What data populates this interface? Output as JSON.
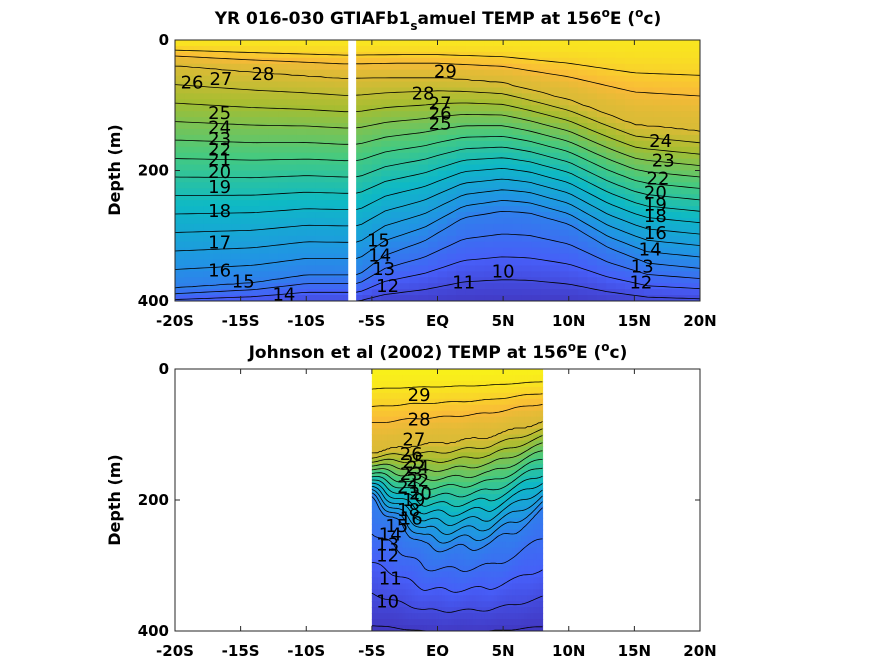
{
  "chart_data": [
    {
      "type": "heatmap",
      "title_parts": [
        "YR 016-030 GTIAFb1",
        "s",
        "amuel TEMP at 156",
        "o",
        "E (",
        "o",
        "c)"
      ],
      "ylabel": "Depth (m)",
      "xlim": [
        -20,
        20
      ],
      "ylim": [
        0,
        400
      ],
      "xtick_labels": [
        "-20S",
        "-15S",
        "-10S",
        "-5S",
        "EQ",
        "5N",
        "10N",
        "15N",
        "20N"
      ],
      "xticks": [
        -20,
        -15,
        -10,
        -5,
        0,
        5,
        10,
        15,
        20
      ],
      "ytick_labels": [
        "0",
        "200",
        "400"
      ],
      "yticks": [
        0,
        200,
        400
      ],
      "data_lat_range": [
        -20,
        20
      ],
      "missing_lat_band": [
        -6.8,
        -6.2
      ],
      "contour_levels": [
        10,
        11,
        12,
        13,
        14,
        15,
        16,
        17,
        18,
        19,
        20,
        21,
        22,
        23,
        24,
        25,
        26,
        27,
        28,
        29
      ],
      "color_range": [
        9,
        30
      ],
      "contour_labels": [
        {
          "t": "26",
          "lat": -18.7,
          "depth": 65
        },
        {
          "t": "27",
          "lat": -16.5,
          "depth": 60
        },
        {
          "t": "28",
          "lat": -13.3,
          "depth": 52
        },
        {
          "t": "25",
          "lat": -16.6,
          "depth": 112
        },
        {
          "t": "24",
          "lat": -16.6,
          "depth": 134
        },
        {
          "t": "23",
          "lat": -16.6,
          "depth": 152
        },
        {
          "t": "22",
          "lat": -16.6,
          "depth": 168
        },
        {
          "t": "21",
          "lat": -16.6,
          "depth": 183
        },
        {
          "t": "20",
          "lat": -16.6,
          "depth": 202
        },
        {
          "t": "19",
          "lat": -16.6,
          "depth": 225
        },
        {
          "t": "18",
          "lat": -16.6,
          "depth": 262
        },
        {
          "t": "17",
          "lat": -16.6,
          "depth": 310
        },
        {
          "t": "16",
          "lat": -16.6,
          "depth": 353
        },
        {
          "t": "15",
          "lat": -14.8,
          "depth": 370
        },
        {
          "t": "14",
          "lat": -11.7,
          "depth": 390
        },
        {
          "t": "29",
          "lat": 0.6,
          "depth": 48
        },
        {
          "t": "28",
          "lat": -1.1,
          "depth": 82
        },
        {
          "t": "27",
          "lat": 0.2,
          "depth": 97
        },
        {
          "t": "26",
          "lat": 0.2,
          "depth": 113
        },
        {
          "t": "25",
          "lat": 0.2,
          "depth": 128
        },
        {
          "t": "24",
          "lat": 17.0,
          "depth": 155
        },
        {
          "t": "23",
          "lat": 17.2,
          "depth": 185
        },
        {
          "t": "22",
          "lat": 16.8,
          "depth": 212
        },
        {
          "t": "20",
          "lat": 16.6,
          "depth": 234
        },
        {
          "t": "19",
          "lat": 16.6,
          "depth": 252
        },
        {
          "t": "18",
          "lat": 16.6,
          "depth": 270
        },
        {
          "t": "16",
          "lat": 16.6,
          "depth": 296
        },
        {
          "t": "14",
          "lat": 16.2,
          "depth": 321
        },
        {
          "t": "13",
          "lat": 15.6,
          "depth": 347
        },
        {
          "t": "12",
          "lat": 15.5,
          "depth": 372
        },
        {
          "t": "15",
          "lat": -4.5,
          "depth": 307
        },
        {
          "t": "14",
          "lat": -4.4,
          "depth": 330
        },
        {
          "t": "13",
          "lat": -4.1,
          "depth": 351
        },
        {
          "t": "12",
          "lat": -3.8,
          "depth": 377
        },
        {
          "t": "11",
          "lat": 2.0,
          "depth": 372
        },
        {
          "t": "10",
          "lat": 5.0,
          "depth": 355
        }
      ]
    },
    {
      "type": "heatmap",
      "title_parts": [
        "Johnson et al (2002) TEMP at 156",
        "o",
        "E (",
        "o",
        "c)"
      ],
      "ylabel": "Depth (m)",
      "xlim": [
        -20,
        20
      ],
      "ylim": [
        0,
        400
      ],
      "xtick_labels": [
        "-20S",
        "-15S",
        "-10S",
        "-5S",
        "EQ",
        "5N",
        "10N",
        "15N",
        "20N"
      ],
      "xticks": [
        -20,
        -15,
        -10,
        -5,
        0,
        5,
        10,
        15,
        20
      ],
      "ytick_labels": [
        "0",
        "200",
        "400"
      ],
      "yticks": [
        0,
        200,
        400
      ],
      "data_lat_range": [
        -5,
        8
      ],
      "contour_levels": [
        10,
        11,
        12,
        13,
        14,
        15,
        16,
        17,
        18,
        19,
        20,
        21,
        22,
        23,
        24,
        25,
        26,
        27,
        28,
        29
      ],
      "color_range": [
        9,
        30
      ],
      "contour_labels": [
        {
          "t": "29",
          "lat": -1.4,
          "depth": 40
        },
        {
          "t": "28",
          "lat": -1.4,
          "depth": 77
        },
        {
          "t": "27",
          "lat": -1.8,
          "depth": 108
        },
        {
          "t": "26",
          "lat": -2.0,
          "depth": 130
        },
        {
          "t": "25",
          "lat": -1.8,
          "depth": 142
        },
        {
          "t": "24",
          "lat": -1.5,
          "depth": 150
        },
        {
          "t": "23",
          "lat": -2.0,
          "depth": 160
        },
        {
          "t": "22",
          "lat": -1.5,
          "depth": 170
        },
        {
          "t": "21",
          "lat": -2.2,
          "depth": 180
        },
        {
          "t": "20",
          "lat": -1.3,
          "depth": 190
        },
        {
          "t": "19",
          "lat": -1.8,
          "depth": 200
        },
        {
          "t": "18",
          "lat": -2.2,
          "depth": 215
        },
        {
          "t": "16",
          "lat": -2.0,
          "depth": 228
        },
        {
          "t": "15",
          "lat": -3.1,
          "depth": 240
        },
        {
          "t": "14",
          "lat": -3.6,
          "depth": 253
        },
        {
          "t": "13",
          "lat": -3.8,
          "depth": 268
        },
        {
          "t": "12",
          "lat": -3.8,
          "depth": 285
        },
        {
          "t": "11",
          "lat": -3.6,
          "depth": 320
        },
        {
          "t": "10",
          "lat": -3.8,
          "depth": 355
        }
      ]
    }
  ]
}
